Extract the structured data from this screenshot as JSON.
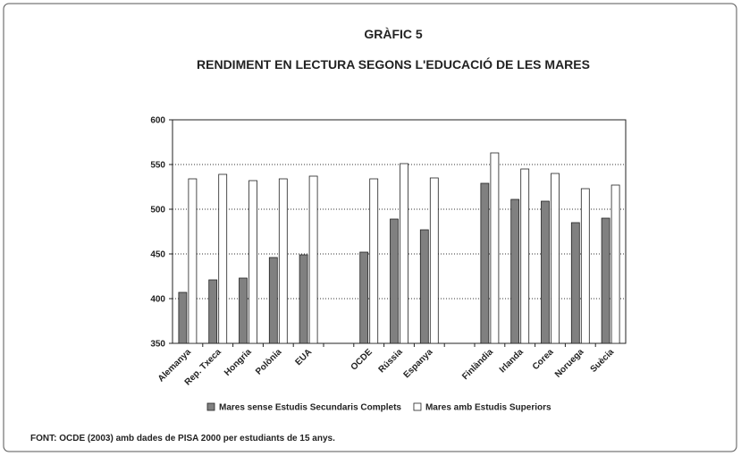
{
  "chart_data": {
    "type": "bar",
    "title": "GRÀFIC 5",
    "subtitle": "RENDIMENT EN LECTURA SEGONS L'EDUCACIÓ DE LES MARES",
    "categories": [
      "Alemanya",
      "Rep. Txeca",
      "Hongria",
      "Polònia",
      "EUA",
      null,
      "OCDE",
      "Rússia",
      "Espanya",
      null,
      "Finlàndia",
      "Irlanda",
      "Corea",
      "Noruega",
      "Suècia"
    ],
    "series": [
      {
        "name": "Mares sense Estudis Secundaris Complets",
        "color": "#808080",
        "values": [
          407,
          421,
          423,
          446,
          449,
          null,
          452,
          489,
          477,
          null,
          529,
          511,
          509,
          485,
          490
        ]
      },
      {
        "name": "Mares amb Estudis Superiors",
        "color": "#ffffff",
        "values": [
          534,
          539,
          532,
          534,
          537,
          null,
          534,
          551,
          535,
          null,
          563,
          545,
          540,
          523,
          527
        ]
      }
    ],
    "ylim": [
      350,
      600
    ],
    "yticks": [
      350,
      400,
      450,
      500,
      550,
      600
    ],
    "grid": true,
    "legend": "bottom",
    "source": "FONT: OCDE (2003) amb dades de PISA 2000 per estudiants de 15 anys."
  }
}
